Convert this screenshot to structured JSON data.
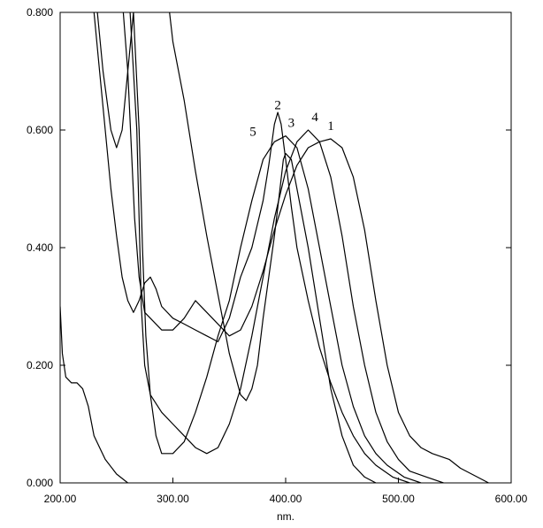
{
  "chart_data": {
    "type": "line",
    "title": "",
    "xlabel": "nm.",
    "ylabel": "",
    "xlim": [
      200,
      600
    ],
    "ylim": [
      0,
      0.8
    ],
    "x_ticks": [
      {
        "value": 200,
        "label": "200.00"
      },
      {
        "value": 300,
        "label": "300.00"
      },
      {
        "value": 400,
        "label": "400.00"
      },
      {
        "value": 500,
        "label": "500.00"
      },
      {
        "value": 600,
        "label": "600.00"
      }
    ],
    "y_ticks": [
      {
        "value": 0,
        "label": "0.000"
      },
      {
        "value": 0.2,
        "label": "0.200"
      },
      {
        "value": 0.4,
        "label": "0.400"
      },
      {
        "value": 0.6,
        "label": "0.600"
      },
      {
        "value": 0.8,
        "label": "0.800"
      }
    ],
    "grid": false,
    "series": [
      {
        "name": "1",
        "label_pos": [
          440,
          0.6
        ],
        "points": [
          [
            256,
            0.8
          ],
          [
            260,
            0.7
          ],
          [
            266,
            0.45
          ],
          [
            270,
            0.35
          ],
          [
            275,
            0.29
          ],
          [
            280,
            0.28
          ],
          [
            290,
            0.26
          ],
          [
            300,
            0.26
          ],
          [
            310,
            0.28
          ],
          [
            320,
            0.31
          ],
          [
            330,
            0.29
          ],
          [
            340,
            0.27
          ],
          [
            350,
            0.25
          ],
          [
            360,
            0.26
          ],
          [
            370,
            0.3
          ],
          [
            380,
            0.36
          ],
          [
            390,
            0.43
          ],
          [
            400,
            0.49
          ],
          [
            410,
            0.54
          ],
          [
            420,
            0.57
          ],
          [
            430,
            0.58
          ],
          [
            440,
            0.585
          ],
          [
            450,
            0.57
          ],
          [
            460,
            0.52
          ],
          [
            470,
            0.43
          ],
          [
            480,
            0.31
          ],
          [
            490,
            0.2
          ],
          [
            500,
            0.12
          ],
          [
            510,
            0.08
          ],
          [
            520,
            0.06
          ],
          [
            530,
            0.05
          ],
          [
            545,
            0.04
          ],
          [
            555,
            0.025
          ],
          [
            570,
            0.01
          ],
          [
            580,
            0.0
          ]
        ]
      },
      {
        "name": "2",
        "label_pos": [
          393,
          0.635
        ],
        "points": [
          [
            230,
            0.8
          ],
          [
            235,
            0.7
          ],
          [
            240,
            0.6
          ],
          [
            245,
            0.5
          ],
          [
            250,
            0.42
          ],
          [
            255,
            0.35
          ],
          [
            260,
            0.31
          ],
          [
            265,
            0.29
          ],
          [
            270,
            0.31
          ],
          [
            275,
            0.34
          ],
          [
            280,
            0.35
          ],
          [
            285,
            0.33
          ],
          [
            290,
            0.3
          ],
          [
            300,
            0.28
          ],
          [
            310,
            0.27
          ],
          [
            320,
            0.26
          ],
          [
            330,
            0.25
          ],
          [
            340,
            0.24
          ],
          [
            350,
            0.28
          ],
          [
            360,
            0.35
          ],
          [
            370,
            0.4
          ],
          [
            380,
            0.48
          ],
          [
            385,
            0.54
          ],
          [
            390,
            0.61
          ],
          [
            393,
            0.63
          ],
          [
            396,
            0.61
          ],
          [
            400,
            0.55
          ],
          [
            405,
            0.47
          ],
          [
            410,
            0.4
          ],
          [
            420,
            0.31
          ],
          [
            430,
            0.23
          ],
          [
            440,
            0.17
          ],
          [
            450,
            0.12
          ],
          [
            460,
            0.08
          ],
          [
            470,
            0.05
          ],
          [
            480,
            0.03
          ],
          [
            495,
            0.01
          ],
          [
            510,
            0.0
          ]
        ]
      },
      {
        "name": "3",
        "label_pos": [
          405,
          0.605
        ],
        "points": [
          [
            233,
            0.8
          ],
          [
            238,
            0.7
          ],
          [
            245,
            0.6
          ],
          [
            250,
            0.57
          ],
          [
            255,
            0.6
          ],
          [
            260,
            0.7
          ],
          [
            265,
            0.8
          ],
          [
            265,
            0.8
          ],
          [
            270,
            0.6
          ],
          [
            273,
            0.4
          ],
          [
            276,
            0.25
          ],
          [
            280,
            0.15
          ],
          [
            285,
            0.08
          ],
          [
            290,
            0.05
          ],
          [
            300,
            0.05
          ],
          [
            310,
            0.07
          ],
          [
            320,
            0.12
          ],
          [
            330,
            0.18
          ],
          [
            340,
            0.25
          ],
          [
            350,
            0.31
          ],
          [
            360,
            0.4
          ],
          [
            370,
            0.48
          ],
          [
            380,
            0.55
          ],
          [
            390,
            0.58
          ],
          [
            400,
            0.59
          ],
          [
            410,
            0.57
          ],
          [
            420,
            0.5
          ],
          [
            430,
            0.4
          ],
          [
            440,
            0.3
          ],
          [
            450,
            0.2
          ],
          [
            460,
            0.13
          ],
          [
            470,
            0.08
          ],
          [
            480,
            0.05
          ],
          [
            490,
            0.03
          ],
          [
            505,
            0.01
          ],
          [
            520,
            0.0
          ]
        ]
      },
      {
        "name": "4",
        "label_pos": [
          426,
          0.615
        ],
        "points": [
          [
            262,
            0.8
          ],
          [
            265,
            0.7
          ],
          [
            268,
            0.6
          ],
          [
            270,
            0.45
          ],
          [
            272,
            0.3
          ],
          [
            275,
            0.2
          ],
          [
            280,
            0.15
          ],
          [
            290,
            0.12
          ],
          [
            300,
            0.1
          ],
          [
            310,
            0.08
          ],
          [
            320,
            0.06
          ],
          [
            330,
            0.05
          ],
          [
            340,
            0.06
          ],
          [
            350,
            0.1
          ],
          [
            360,
            0.16
          ],
          [
            370,
            0.25
          ],
          [
            380,
            0.35
          ],
          [
            390,
            0.45
          ],
          [
            400,
            0.53
          ],
          [
            410,
            0.58
          ],
          [
            420,
            0.6
          ],
          [
            430,
            0.58
          ],
          [
            440,
            0.52
          ],
          [
            450,
            0.42
          ],
          [
            460,
            0.3
          ],
          [
            470,
            0.2
          ],
          [
            480,
            0.12
          ],
          [
            490,
            0.07
          ],
          [
            500,
            0.04
          ],
          [
            510,
            0.02
          ],
          [
            525,
            0.01
          ],
          [
            540,
            0.0
          ]
        ]
      },
      {
        "name": "5",
        "label_pos": [
          371,
          0.59
        ],
        "points": [
          [
            297,
            0.8
          ],
          [
            300,
            0.75
          ],
          [
            310,
            0.65
          ],
          [
            320,
            0.53
          ],
          [
            330,
            0.42
          ],
          [
            340,
            0.32
          ],
          [
            350,
            0.22
          ],
          [
            360,
            0.15
          ],
          [
            365,
            0.14
          ],
          [
            370,
            0.16
          ],
          [
            375,
            0.2
          ],
          [
            380,
            0.28
          ],
          [
            385,
            0.35
          ],
          [
            390,
            0.42
          ],
          [
            395,
            0.5
          ],
          [
            398,
            0.55
          ],
          [
            400,
            0.56
          ],
          [
            405,
            0.55
          ],
          [
            410,
            0.5
          ],
          [
            420,
            0.4
          ],
          [
            430,
            0.28
          ],
          [
            440,
            0.16
          ],
          [
            450,
            0.08
          ],
          [
            460,
            0.03
          ],
          [
            470,
            0.01
          ],
          [
            480,
            0.0
          ]
        ]
      },
      {
        "name": "",
        "points": [
          [
            200,
            0.3
          ],
          [
            202,
            0.22
          ],
          [
            205,
            0.18
          ],
          [
            210,
            0.17
          ],
          [
            215,
            0.17
          ],
          [
            220,
            0.16
          ],
          [
            225,
            0.13
          ],
          [
            230,
            0.08
          ],
          [
            240,
            0.04
          ],
          [
            250,
            0.015
          ],
          [
            260,
            0.0
          ]
        ]
      }
    ]
  }
}
